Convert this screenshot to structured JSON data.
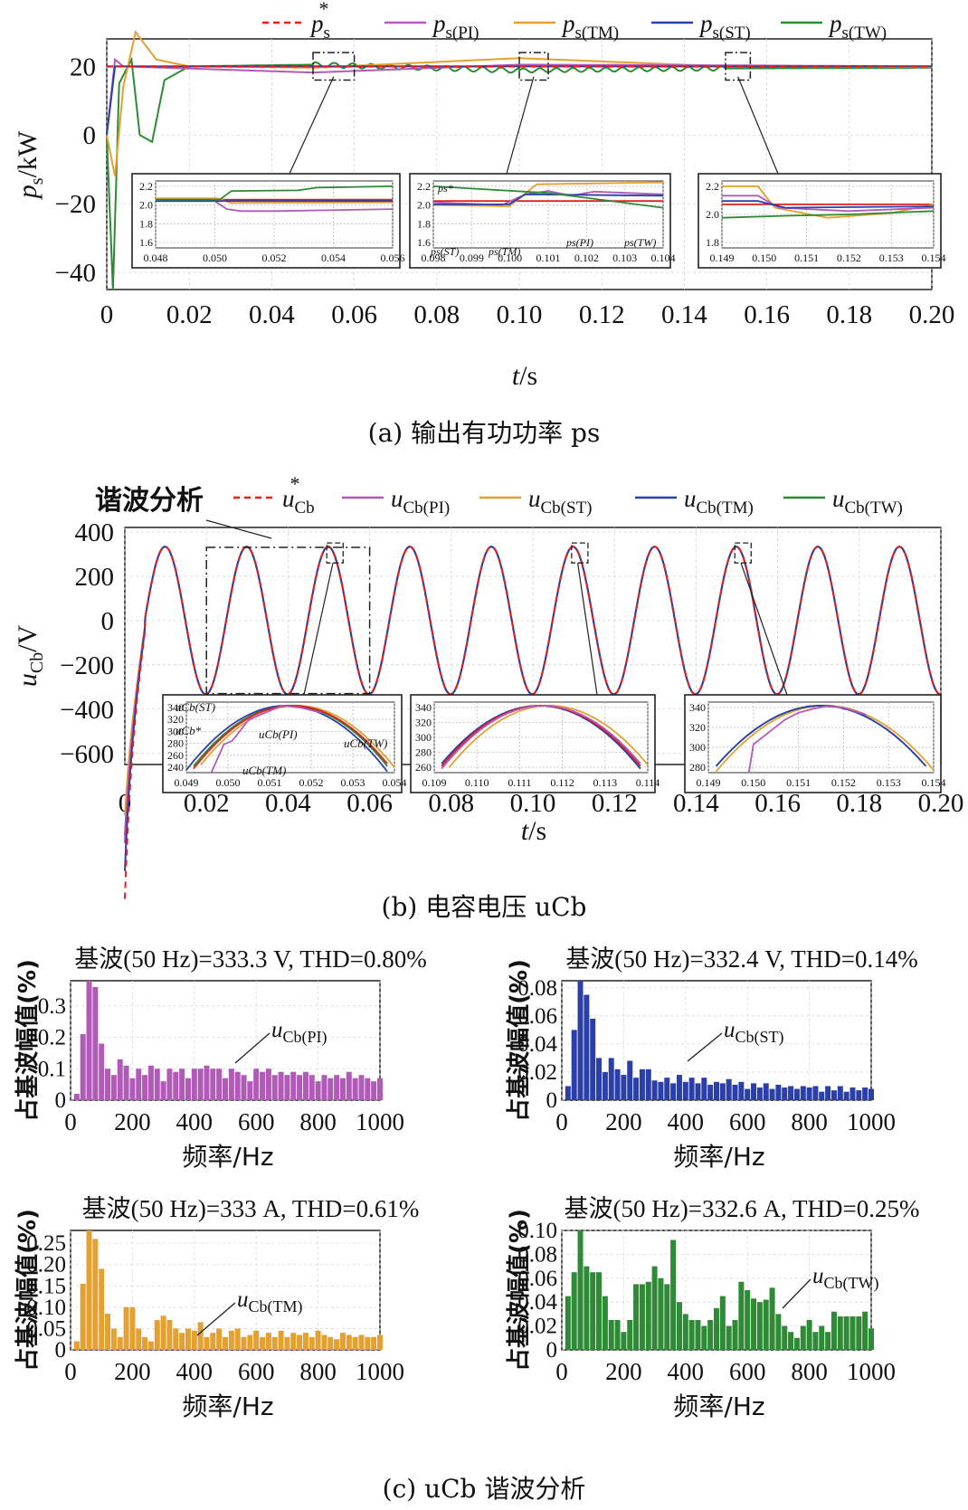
{
  "caption_a": "(a) 输出有功功率 ps",
  "caption_b": "(b) 电容电压 uCb",
  "caption_c": "(c) uCb 谐波分析",
  "colors": {
    "ref": "#e02020",
    "pi": "#b15ab8",
    "tm": "#e4a030",
    "st": "#2b3fa8",
    "tw": "#2e8a34"
  },
  "chart_data": [
    {
      "id": "a",
      "type": "line",
      "title": "",
      "xlabel": "t/s",
      "ylabel": "ps/kW",
      "xlim": [
        0,
        0.2
      ],
      "ylim": [
        -45,
        28
      ],
      "xticks": [
        "0",
        "0.02",
        "0.04",
        "0.06",
        "0.08",
        "0.10",
        "0.12",
        "0.14",
        "0.16",
        "0.18",
        "0.20"
      ],
      "yticks": [
        "20",
        "0",
        "−20",
        "−40"
      ],
      "legend": [
        "ps*",
        "ps(PI)",
        "ps(TM)",
        "ps(ST)",
        "ps(TW)"
      ],
      "series": [
        {
          "name": "ps*",
          "x": [
            0,
            0.2
          ],
          "values": [
            20,
            20
          ]
        },
        {
          "name": "ps(PI)",
          "x": [
            0,
            0.002,
            0.004,
            0.05,
            0.1,
            0.15,
            0.2
          ],
          "values": [
            0,
            22,
            20,
            18.2,
            20.5,
            20.3,
            20
          ]
        },
        {
          "name": "ps(TM)",
          "x": [
            0,
            0.002,
            0.004,
            0.007,
            0.012,
            0.02,
            0.05,
            0.1,
            0.15,
            0.2
          ],
          "values": [
            0,
            -12,
            14,
            30,
            22,
            20,
            19.6,
            22.4,
            20,
            19.8
          ]
        },
        {
          "name": "ps(ST)",
          "x": [
            0,
            0.002,
            0.2
          ],
          "values": [
            0,
            20,
            20
          ]
        },
        {
          "name": "ps(TW)",
          "x": [
            0,
            0.0015,
            0.003,
            0.006,
            0.008,
            0.011,
            0.014,
            0.02,
            0.05,
            0.1,
            0.15,
            0.2
          ],
          "values": [
            0,
            -45,
            15,
            22,
            0,
            -2,
            16,
            20,
            20.5,
            18.8,
            19.4,
            19.6
          ]
        }
      ],
      "insets": [
        {
          "xticks": [
            "0.048",
            "0.050",
            "0.052",
            "0.054",
            "0.056"
          ],
          "yticks": [
            "2.2",
            "2.0",
            "1.8",
            "1.6"
          ]
        },
        {
          "xticks": [
            "0.098",
            "0.099",
            "0.100",
            "0.101",
            "0.102",
            "0.103",
            "0.104"
          ],
          "yticks": [
            "2.2",
            "2.0",
            "1.8",
            "1.6"
          ],
          "labels": [
            "ps*",
            "ps(ST)",
            "ps(TM)",
            "ps(PI)",
            "ps(TW)"
          ]
        },
        {
          "xticks": [
            "0.149",
            "0.150",
            "0.151",
            "0.152",
            "0.153",
            "0.154"
          ],
          "yticks": [
            "2.2",
            "2.0",
            "1.8"
          ]
        }
      ]
    },
    {
      "id": "b",
      "type": "line",
      "title": "",
      "xlabel": "t/s",
      "ylabel": "uCb/V",
      "xlim": [
        0,
        0.2
      ],
      "ylim": [
        -650,
        420
      ],
      "xticks": [
        "0",
        "0.02",
        "0.04",
        "0.06",
        "0.08",
        "0.10",
        "0.12",
        "0.14",
        "0.16",
        "0.18",
        "0.20"
      ],
      "yticks": [
        "400",
        "200",
        "0",
        "−200",
        "−400",
        "−600"
      ],
      "legend": [
        "uCb*",
        "uCb(PI)",
        "uCb(ST)",
        "uCb(TM)",
        "uCb(TW)"
      ],
      "amplitude": 333,
      "frequency_hz": 50,
      "annotation": "谐波分析",
      "insets": [
        {
          "xticks": [
            "0.049",
            "0.050",
            "0.051",
            "0.052",
            "0.053",
            "0.054"
          ],
          "yticks": [
            "340",
            "320",
            "300",
            "280",
            "260",
            "240"
          ],
          "labels": [
            "uCb(ST)",
            "uCb*",
            "uCb(PI)",
            "uCb(TW)",
            "uCb(TM)"
          ]
        },
        {
          "xticks": [
            "0.109",
            "0.110",
            "0.111",
            "0.112",
            "0.113",
            "0.114"
          ],
          "yticks": [
            "340",
            "320",
            "300",
            "280",
            "260"
          ]
        },
        {
          "xticks": [
            "0.149",
            "0.150",
            "0.151",
            "0.152",
            "0.153",
            "0.154"
          ],
          "yticks": [
            "340",
            "320",
            "300",
            "280"
          ]
        }
      ]
    },
    {
      "id": "c1",
      "type": "bar",
      "title": "基波(50 Hz)=333.3 V, THD=0.80%",
      "xlabel": "频率/Hz",
      "ylabel": "占基波幅值(%)",
      "label": "uCb(PI)",
      "xlim": [
        0,
        1000
      ],
      "ylim": [
        0,
        0.38
      ],
      "xticks": [
        "0",
        "200",
        "400",
        "600",
        "800",
        "1000"
      ],
      "yticks": [
        "0",
        "0.1",
        "0.2",
        "0.3"
      ],
      "values": [
        0.02,
        0.21,
        0.38,
        0.36,
        0.18,
        0.1,
        0.08,
        0.13,
        0.11,
        0.07,
        0.1,
        0.08,
        0.11,
        0.1,
        0.06,
        0.1,
        0.09,
        0.1,
        0.07,
        0.1,
        0.1,
        0.11,
        0.1,
        0.1,
        0.07,
        0.1,
        0.09,
        0.08,
        0.06,
        0.1,
        0.09,
        0.1,
        0.08,
        0.09,
        0.08,
        0.09,
        0.08,
        0.09,
        0.08,
        0.06,
        0.08,
        0.07,
        0.08,
        0.07,
        0.09,
        0.07,
        0.08,
        0.07,
        0.06,
        0.07
      ]
    },
    {
      "id": "c2",
      "type": "bar",
      "title": "基波(50 Hz)=332.4 V, THD=0.14%",
      "xlabel": "频率/Hz",
      "ylabel": "占基波幅值(%)",
      "label": "uCb(ST)",
      "xlim": [
        0,
        1000
      ],
      "ylim": [
        0,
        0.085
      ],
      "xticks": [
        "0",
        "200",
        "400",
        "600",
        "800",
        "1000"
      ],
      "yticks": [
        "0",
        "0.02",
        "0.04",
        "0.06",
        "0.08"
      ],
      "values": [
        0.01,
        0.05,
        0.085,
        0.075,
        0.058,
        0.03,
        0.02,
        0.03,
        0.022,
        0.018,
        0.028,
        0.016,
        0.022,
        0.022,
        0.014,
        0.013,
        0.016,
        0.012,
        0.018,
        0.013,
        0.016,
        0.012,
        0.016,
        0.011,
        0.013,
        0.012,
        0.015,
        0.011,
        0.013,
        0.008,
        0.012,
        0.009,
        0.012,
        0.008,
        0.011,
        0.009,
        0.01,
        0.008,
        0.01,
        0.009,
        0.01,
        0.006,
        0.01,
        0.007,
        0.01,
        0.006,
        0.009,
        0.007,
        0.009,
        0.008
      ]
    },
    {
      "id": "c3",
      "type": "bar",
      "title": "基波(50 Hz)=333 A, THD=0.61%",
      "xlabel": "频率/Hz",
      "ylabel": "占基波幅值(%)",
      "label": "uCb(TM)",
      "xlim": [
        0,
        1000
      ],
      "ylim": [
        0,
        0.28
      ],
      "xticks": [
        "0",
        "200",
        "400",
        "600",
        "800",
        "1000"
      ],
      "yticks": [
        "0",
        "0.05",
        "0.10",
        "0.15",
        "0.20",
        "0.25"
      ],
      "values": [
        0.02,
        0.155,
        0.28,
        0.26,
        0.19,
        0.085,
        0.05,
        0.03,
        0.1,
        0.1,
        0.05,
        0.03,
        0.02,
        0.07,
        0.08,
        0.07,
        0.05,
        0.04,
        0.05,
        0.045,
        0.065,
        0.03,
        0.04,
        0.05,
        0.03,
        0.045,
        0.05,
        0.03,
        0.035,
        0.045,
        0.03,
        0.04,
        0.03,
        0.045,
        0.03,
        0.04,
        0.035,
        0.04,
        0.03,
        0.045,
        0.035,
        0.03,
        0.025,
        0.04,
        0.035,
        0.03,
        0.035,
        0.03,
        0.03,
        0.035
      ]
    },
    {
      "id": "c4",
      "type": "bar",
      "title": "基波(50 Hz)=332.6 A, THD=0.25%",
      "xlabel": "频率/Hz",
      "ylabel": "占基波幅值(%)",
      "label": "uCb(TW)",
      "xlim": [
        0,
        1000
      ],
      "ylim": [
        0,
        0.1
      ],
      "xticks": [
        "0",
        "200",
        "400",
        "600",
        "800",
        "1000"
      ],
      "yticks": [
        "0",
        "0.02",
        "0.04",
        "0.06",
        "0.08",
        "0.10"
      ],
      "values": [
        0.045,
        0.065,
        0.1,
        0.07,
        0.065,
        0.065,
        0.045,
        0.025,
        0.025,
        0.015,
        0.025,
        0.055,
        0.055,
        0.057,
        0.07,
        0.06,
        0.055,
        0.092,
        0.04,
        0.03,
        0.025,
        0.025,
        0.02,
        0.025,
        0.035,
        0.045,
        0.02,
        0.025,
        0.057,
        0.05,
        0.043,
        0.04,
        0.042,
        0.052,
        0.03,
        0.02,
        0.015,
        0.01,
        0.02,
        0.025,
        0.015,
        0.02,
        0.015,
        0.032,
        0.028,
        0.028,
        0.028,
        0.028,
        0.032,
        0.018
      ]
    }
  ]
}
